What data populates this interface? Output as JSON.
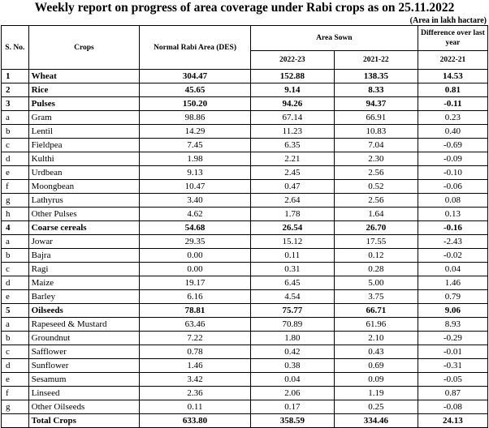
{
  "title": "Weekly report on progress of area coverage under Rabi crops as on 25.11.2022",
  "unit_note": "(Area in lakh hactare)",
  "headers": {
    "sno": "S. No.",
    "crops": "Crops",
    "normal": "Normal Rabi Area (DES)",
    "area_sown": "Area Sown",
    "diff": "Difference over last year",
    "year1": "2022-23",
    "year2": "2021-22",
    "diff_year": "2022-21"
  },
  "rows": [
    {
      "no": "1",
      "crop": "Wheat",
      "normal": "304.47",
      "y1": "152.88",
      "y2": "138.35",
      "diff": "14.53",
      "bold": true
    },
    {
      "no": "2",
      "crop": "Rice",
      "normal": "45.65",
      "y1": "9.14",
      "y2": "8.33",
      "diff": "0.81",
      "bold": true
    },
    {
      "no": "3",
      "crop": "Pulses",
      "normal": "150.20",
      "y1": "94.26",
      "y2": "94.37",
      "diff": "-0.11",
      "bold": true
    },
    {
      "no": "a",
      "crop": "Gram",
      "normal": "98.86",
      "y1": "67.14",
      "y2": "66.91",
      "diff": "0.23",
      "bold": false
    },
    {
      "no": "b",
      "crop": "Lentil",
      "normal": "14.29",
      "y1": "11.23",
      "y2": "10.83",
      "diff": "0.40",
      "bold": false
    },
    {
      "no": "c",
      "crop": "Fieldpea",
      "normal": "7.45",
      "y1": "6.35",
      "y2": "7.04",
      "diff": "-0.69",
      "bold": false
    },
    {
      "no": "d",
      "crop": "Kulthi",
      "normal": "1.98",
      "y1": "2.21",
      "y2": "2.30",
      "diff": "-0.09",
      "bold": false
    },
    {
      "no": "e",
      "crop": "Urdbean",
      "normal": "9.13",
      "y1": "2.45",
      "y2": "2.56",
      "diff": "-0.10",
      "bold": false
    },
    {
      "no": "f",
      "crop": "Moongbean",
      "normal": "10.47",
      "y1": "0.47",
      "y2": "0.52",
      "diff": "-0.06",
      "bold": false
    },
    {
      "no": "g",
      "crop": "Lathyrus",
      "normal": "3.40",
      "y1": "2.64",
      "y2": "2.56",
      "diff": "0.08",
      "bold": false
    },
    {
      "no": "h",
      "crop": "Other Pulses",
      "normal": "4.62",
      "y1": "1.78",
      "y2": "1.64",
      "diff": "0.13",
      "bold": false
    },
    {
      "no": "4",
      "crop": "Coarse cereals",
      "normal": "54.68",
      "y1": "26.54",
      "y2": "26.70",
      "diff": "-0.16",
      "bold": true
    },
    {
      "no": "a",
      "crop": "Jowar",
      "normal": "29.35",
      "y1": "15.12",
      "y2": "17.55",
      "diff": "-2.43",
      "bold": false
    },
    {
      "no": "b",
      "crop": "Bajra",
      "normal": "0.00",
      "y1": "0.11",
      "y2": "0.12",
      "diff": "-0.02",
      "bold": false
    },
    {
      "no": "c",
      "crop": "Ragi",
      "normal": "0.00",
      "y1": "0.31",
      "y2": "0.28",
      "diff": "0.04",
      "bold": false
    },
    {
      "no": "d",
      "crop": "Maize",
      "normal": "19.17",
      "y1": "6.45",
      "y2": "5.00",
      "diff": "1.46",
      "bold": false
    },
    {
      "no": "e",
      "crop": "Barley",
      "normal": "6.16",
      "y1": "4.54",
      "y2": "3.75",
      "diff": "0.79",
      "bold": false
    },
    {
      "no": "5",
      "crop": "Oilseeds",
      "normal": "78.81",
      "y1": "75.77",
      "y2": "66.71",
      "diff": "9.06",
      "bold": true
    },
    {
      "no": "a",
      "crop": "Rapeseed & Mustard",
      "normal": "63.46",
      "y1": "70.89",
      "y2": "61.96",
      "diff": "8.93",
      "bold": false
    },
    {
      "no": "b",
      "crop": "Groundnut",
      "normal": "7.22",
      "y1": "1.80",
      "y2": "2.10",
      "diff": "-0.29",
      "bold": false
    },
    {
      "no": "c",
      "crop": "Safflower",
      "normal": "0.78",
      "y1": "0.42",
      "y2": "0.43",
      "diff": "-0.01",
      "bold": false
    },
    {
      "no": "d",
      "crop": "Sunflower",
      "normal": "1.46",
      "y1": "0.38",
      "y2": "0.69",
      "diff": "-0.31",
      "bold": false
    },
    {
      "no": "e",
      "crop": "Sesamum",
      "normal": "3.42",
      "y1": "0.04",
      "y2": "0.09",
      "diff": "-0.05",
      "bold": false
    },
    {
      "no": "f",
      "crop": "Linseed",
      "normal": "2.36",
      "y1": "2.06",
      "y2": "1.19",
      "diff": "0.87",
      "bold": false
    },
    {
      "no": "g",
      "crop": "Other Oilseeds",
      "normal": "0.11",
      "y1": "0.17",
      "y2": "0.25",
      "diff": "-0.08",
      "bold": false
    },
    {
      "no": "",
      "crop": "Total Crops",
      "normal": "633.80",
      "y1": "358.59",
      "y2": "334.46",
      "diff": "24.13",
      "bold": true
    }
  ]
}
